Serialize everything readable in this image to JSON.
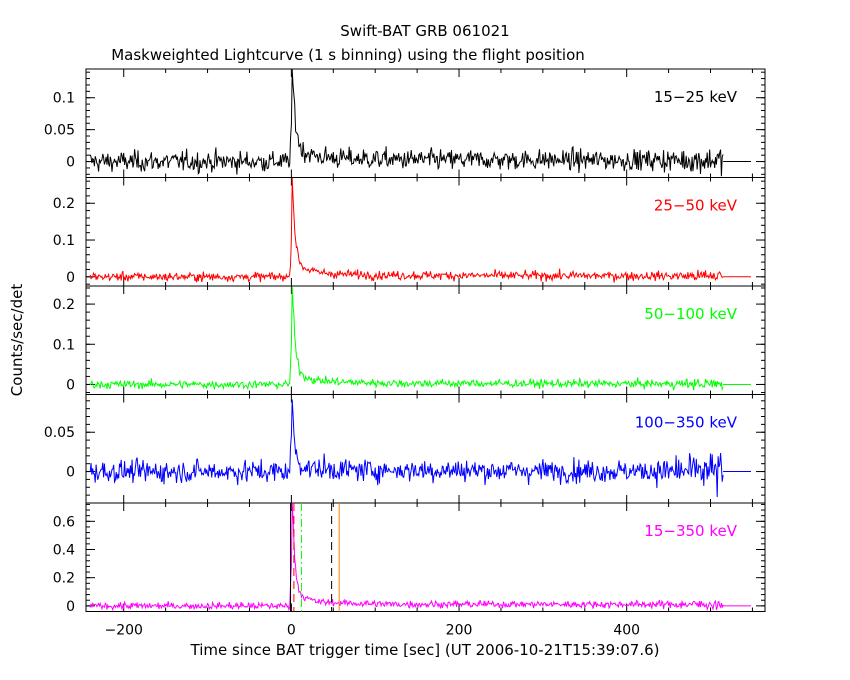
{
  "chart_data": {
    "type": "line",
    "title": "Swift-BAT GRB 061021",
    "subtitle": "Maskweighted Lightcurve (1 s binning) using the flight position",
    "xlabel": "Time since BAT trigger time [sec] (UT 2006-10-21T15:39:07.6)",
    "ylabel": "Counts/sec/det",
    "xlim": [
      -245,
      565
    ],
    "x_ticks": [
      -200,
      0,
      200,
      400
    ],
    "x_tick_labels": [
      "−200",
      "0",
      "200",
      "400"
    ],
    "panels": [
      {
        "name": "15−25 keV",
        "color": "#000000",
        "ylim": [
          -0.025,
          0.145
        ],
        "y_ticks": [
          0,
          0.05,
          0.1
        ],
        "y_tick_labels": [
          "0",
          "0.05",
          "0.1"
        ],
        "noise": 0.008,
        "noise_late": 0.011,
        "peak": [
          [
            -2,
            0.0
          ],
          [
            0,
            0.06
          ],
          [
            1,
            0.14
          ],
          [
            2,
            0.12
          ],
          [
            4,
            0.08
          ],
          [
            6,
            0.05
          ],
          [
            10,
            0.025
          ],
          [
            15,
            0.015
          ],
          [
            30,
            0.008
          ],
          [
            60,
            0.005
          ],
          [
            120,
            0.003
          ],
          [
            520,
            0.002
          ]
        ]
      },
      {
        "name": "25−50 keV",
        "color": "#ff0000",
        "ylim": [
          -0.025,
          0.27
        ],
        "y_ticks": [
          0,
          0.1,
          0.2
        ],
        "y_tick_labels": [
          "0",
          "0.1",
          "0.2"
        ],
        "noise": 0.006,
        "noise_late": 0.009,
        "peak": [
          [
            -2,
            0.0
          ],
          [
            0,
            0.1
          ],
          [
            1,
            0.29
          ],
          [
            2,
            0.22
          ],
          [
            4,
            0.13
          ],
          [
            6,
            0.08
          ],
          [
            10,
            0.04
          ],
          [
            15,
            0.025
          ],
          [
            30,
            0.012
          ],
          [
            60,
            0.007
          ],
          [
            120,
            0.004
          ],
          [
            520,
            0.002
          ]
        ]
      },
      {
        "name": "50−100 keV",
        "color": "#00ff00",
        "ylim": [
          -0.025,
          0.245
        ],
        "y_ticks": [
          0,
          0.1,
          0.2
        ],
        "y_tick_labels": [
          "0",
          "0.1",
          "0.2"
        ],
        "noise": 0.005,
        "noise_late": 0.008,
        "peak": [
          [
            -2,
            0.0
          ],
          [
            0,
            0.1
          ],
          [
            1,
            0.28
          ],
          [
            2,
            0.2
          ],
          [
            4,
            0.12
          ],
          [
            6,
            0.07
          ],
          [
            10,
            0.035
          ],
          [
            15,
            0.02
          ],
          [
            30,
            0.01
          ],
          [
            60,
            0.006
          ],
          [
            120,
            0.003
          ],
          [
            520,
            0.001
          ]
        ]
      },
      {
        "name": "100−350 keV",
        "color": "#0000ff",
        "ylim": [
          -0.04,
          0.098
        ],
        "y_ticks": [
          0,
          0.05
        ],
        "y_tick_labels": [
          "0",
          "0.05"
        ],
        "noise": 0.007,
        "noise_late": 0.014,
        "peak": [
          [
            -2,
            0.0
          ],
          [
            0,
            0.04
          ],
          [
            1,
            0.095
          ],
          [
            2,
            0.07
          ],
          [
            4,
            0.035
          ],
          [
            6,
            0.02
          ],
          [
            10,
            0.01
          ],
          [
            20,
            0.004
          ],
          [
            60,
            0.002
          ],
          [
            520,
            0.0
          ]
        ]
      },
      {
        "name": "15−350 keV",
        "color": "#ff00ff",
        "ylim": [
          -0.04,
          0.73
        ],
        "y_ticks": [
          0,
          0.2,
          0.4,
          0.6
        ],
        "y_tick_labels": [
          "0",
          "0.2",
          "0.4",
          "0.6"
        ],
        "noise": 0.012,
        "noise_late": 0.018,
        "peak": [
          [
            -2,
            0.0
          ],
          [
            0,
            0.3
          ],
          [
            1,
            0.72
          ],
          [
            2,
            0.6
          ],
          [
            4,
            0.35
          ],
          [
            6,
            0.2
          ],
          [
            10,
            0.1
          ],
          [
            15,
            0.06
          ],
          [
            30,
            0.03
          ],
          [
            60,
            0.02
          ],
          [
            120,
            0.012
          ],
          [
            520,
            0.01
          ]
        ]
      }
    ],
    "markers": [
      {
        "x": -1,
        "color": "#000000",
        "style": "solid"
      },
      {
        "x": 3,
        "color": "#ff0000",
        "style": "dashed"
      },
      {
        "x": 12,
        "color": "#00ff00",
        "style": "dashdot"
      },
      {
        "x": 48,
        "color": "#000000",
        "style": "dashed"
      },
      {
        "x": 57,
        "color": "#ff8000",
        "style": "solid"
      }
    ],
    "data_end_x": 515,
    "grid": false
  }
}
